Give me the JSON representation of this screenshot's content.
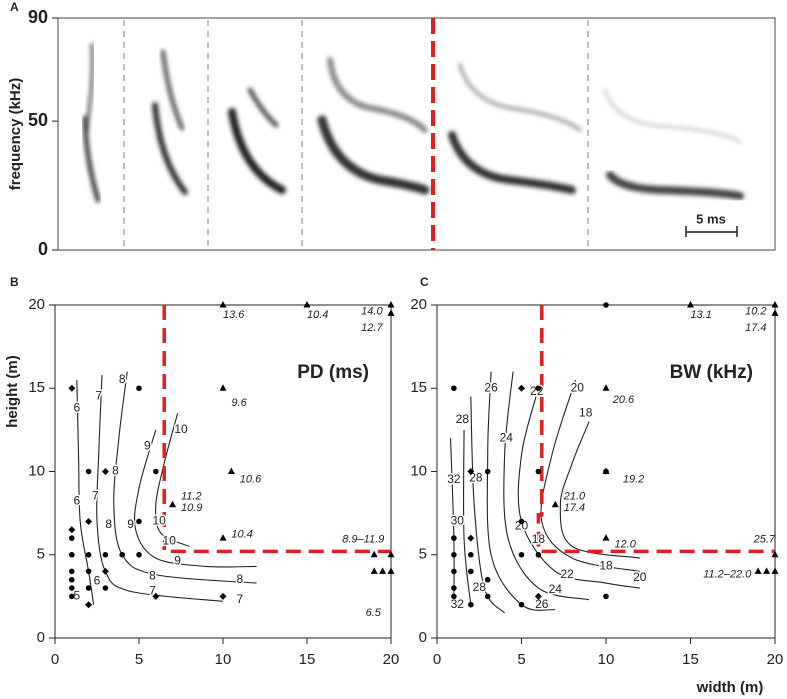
{
  "chart_data": [
    {
      "type": "spectrogram",
      "panel": "A",
      "ylabel": "frequency (kHz)",
      "ylim": [
        0,
        90
      ],
      "yticks": [
        0,
        50,
        90
      ],
      "scale_bar_label": "5 ms"
    },
    {
      "type": "contour",
      "panel": "B",
      "title": "PD (ms)",
      "ylabel": "height (m)",
      "xlim": [
        0,
        20
      ],
      "ylim": [
        0,
        20
      ],
      "xticks": [
        0,
        5,
        10,
        15,
        20
      ],
      "yticks": [
        0,
        5,
        10,
        15,
        20
      ],
      "series": [
        {
          "marker": "circle",
          "color": "#000000",
          "x": [
            5,
            2,
            6,
            1,
            1,
            1,
            1,
            1,
            2,
            2,
            3,
            4,
            5,
            5,
            1,
            2,
            3
          ],
          "y": [
            15,
            10,
            10,
            6,
            5,
            4,
            3,
            3.5,
            5,
            4,
            5,
            5,
            7,
            5,
            2.5,
            3,
            3
          ]
        },
        {
          "marker": "diamond",
          "color": "#000000",
          "x": [
            1,
            3,
            1,
            2,
            3,
            2,
            10,
            6
          ],
          "y": [
            15,
            10,
            6.5,
            7,
            4,
            2,
            2.5,
            2.5
          ]
        },
        {
          "marker": "triangle",
          "color": "#000000",
          "x": [
            10,
            15,
            20,
            20,
            10,
            10.5,
            7,
            10,
            19,
            20,
            19,
            19.5,
            20
          ],
          "y": [
            20,
            20,
            20,
            19.5,
            15,
            10,
            8,
            6,
            5,
            5,
            4,
            4,
            4
          ]
        }
      ],
      "point_labels": [
        {
          "text": "13.6",
          "x": 10,
          "y": 19.4
        },
        {
          "text": "10.4",
          "x": 15,
          "y": 19.4
        },
        {
          "text": "14.0",
          "x": 19.5,
          "y": 19.6
        },
        {
          "text": "12.7",
          "x": 19.5,
          "y": 18.6
        },
        {
          "text": "9.6",
          "x": 10.5,
          "y": 14.1
        },
        {
          "text": "10.6",
          "x": 11,
          "y": 9.5
        },
        {
          "text": "11.2",
          "x": 7.5,
          "y": 8.5
        },
        {
          "text": "10.9",
          "x": 7.5,
          "y": 7.8
        },
        {
          "text": "10.4",
          "x": 10.5,
          "y": 6.2
        },
        {
          "text": "8.9–11.9",
          "x": 19.6,
          "y": 5.9
        },
        {
          "text": "6.5",
          "x": 19.4,
          "y": 1.5
        }
      ],
      "contour_labels": [
        {
          "level": 8,
          "x": 4,
          "y": 15.5
        },
        {
          "level": 7,
          "x": 2.6,
          "y": 14.5
        },
        {
          "level": 6,
          "x": 1.3,
          "y": 13.8
        },
        {
          "level": 10,
          "x": 7.5,
          "y": 12.5
        },
        {
          "level": 9,
          "x": 5.5,
          "y": 11.5
        },
        {
          "level": 8,
          "x": 3.6,
          "y": 10
        },
        {
          "level": 7,
          "x": 2.4,
          "y": 8.5
        },
        {
          "level": 6,
          "x": 1.3,
          "y": 8.2
        },
        {
          "level": 8,
          "x": 3.2,
          "y": 6.8
        },
        {
          "level": 9,
          "x": 4.5,
          "y": 6.8
        },
        {
          "level": 10,
          "x": 6.2,
          "y": 7
        },
        {
          "level": 10,
          "x": 6.8,
          "y": 5.8
        },
        {
          "level": 9,
          "x": 7.3,
          "y": 4.6
        },
        {
          "level": 8,
          "x": 5.8,
          "y": 3.7
        },
        {
          "level": 7,
          "x": 5.8,
          "y": 2.8
        },
        {
          "level": 6,
          "x": 2.5,
          "y": 3.4
        },
        {
          "level": 5,
          "x": 1.3,
          "y": 2.5
        },
        {
          "level": 8,
          "x": 11,
          "y": 3.5
        },
        {
          "level": 7,
          "x": 11,
          "y": 2.3
        }
      ]
    },
    {
      "type": "contour",
      "panel": "C",
      "title": "BW (kHz)",
      "xlabel": "width (m)",
      "xlim": [
        0,
        20
      ],
      "ylim": [
        0,
        20
      ],
      "xticks": [
        0,
        5,
        10,
        15,
        20
      ],
      "yticks": [
        0,
        5,
        10,
        15,
        20
      ],
      "series": [
        {
          "marker": "circle",
          "color": "#000000",
          "x": [
            1,
            6,
            3,
            6,
            10,
            1,
            1,
            1,
            1,
            2,
            2,
            3,
            5,
            5,
            6,
            10,
            10,
            2,
            5,
            1,
            3
          ],
          "y": [
            15,
            15,
            10,
            10,
            20,
            6,
            5,
            4,
            3,
            5,
            4,
            3.5,
            7,
            5,
            5,
            10,
            2.5,
            2,
            2,
            2.5,
            2.5
          ]
        },
        {
          "marker": "diamond",
          "color": "#000000",
          "x": [
            5,
            2,
            2,
            6
          ],
          "y": [
            15,
            10,
            6,
            2.5
          ]
        },
        {
          "marker": "triangle",
          "color": "#000000",
          "x": [
            15,
            20,
            20,
            10,
            10,
            7,
            10,
            20,
            19,
            19.5,
            20
          ],
          "y": [
            20,
            20,
            19.5,
            15,
            10,
            8,
            6,
            5,
            4,
            4,
            4
          ]
        }
      ],
      "point_labels": [
        {
          "text": "13.1",
          "x": 15,
          "y": 19.4
        },
        {
          "text": "10.2",
          "x": 19.5,
          "y": 19.6
        },
        {
          "text": "17.4",
          "x": 19.5,
          "y": 18.6
        },
        {
          "text": "20.6",
          "x": 10.4,
          "y": 14.3
        },
        {
          "text": "19.2",
          "x": 11,
          "y": 9.5
        },
        {
          "text": "21.0",
          "x": 7.5,
          "y": 8.5
        },
        {
          "text": "17.4",
          "x": 7.5,
          "y": 7.8
        },
        {
          "text": "12.0",
          "x": 10.5,
          "y": 5.6
        },
        {
          "text": "25.7",
          "x": 20,
          "y": 5.9
        },
        {
          "text": "11.2–22.0",
          "x": 18.6,
          "y": 3.8
        }
      ],
      "contour_labels": [
        {
          "level": 26,
          "x": 3.2,
          "y": 15
        },
        {
          "level": 22,
          "x": 5.9,
          "y": 14.8
        },
        {
          "level": 20,
          "x": 8.3,
          "y": 15
        },
        {
          "level": 18,
          "x": 8.8,
          "y": 13.5
        },
        {
          "level": 28,
          "x": 1.5,
          "y": 13.1
        },
        {
          "level": 24,
          "x": 4.1,
          "y": 12
        },
        {
          "level": 32,
          "x": 1,
          "y": 9.5
        },
        {
          "level": 28,
          "x": 2.3,
          "y": 9.6
        },
        {
          "level": 30,
          "x": 1.2,
          "y": 7
        },
        {
          "level": 20,
          "x": 5,
          "y": 6.7
        },
        {
          "level": 18,
          "x": 6,
          "y": 5.9
        },
        {
          "level": 18,
          "x": 10,
          "y": 4.3
        },
        {
          "level": 20,
          "x": 12,
          "y": 3.6
        },
        {
          "level": 22,
          "x": 7.7,
          "y": 3.8
        },
        {
          "level": 24,
          "x": 7,
          "y": 2.9
        },
        {
          "level": 26,
          "x": 6.2,
          "y": 2
        },
        {
          "level": 28,
          "x": 2.5,
          "y": 3
        },
        {
          "level": 32,
          "x": 1.2,
          "y": 2
        }
      ]
    }
  ]
}
